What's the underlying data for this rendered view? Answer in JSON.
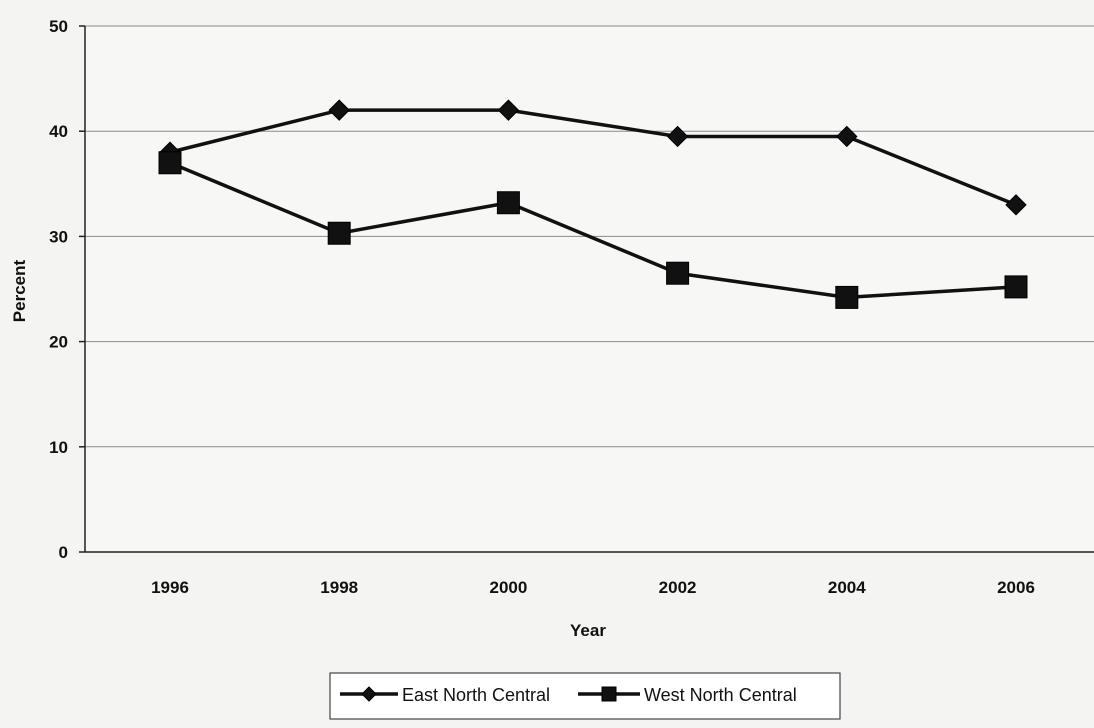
{
  "chart_data": {
    "type": "line",
    "title": "",
    "xlabel": "Year",
    "ylabel": "Percent",
    "categories": [
      "1996",
      "1998",
      "2000",
      "2002",
      "2004",
      "2006"
    ],
    "ylim": [
      0,
      50
    ],
    "yticks": [
      0,
      10,
      20,
      30,
      40,
      50
    ],
    "grid": true,
    "legend_position": "bottom",
    "series": [
      {
        "name": "East North Central",
        "marker": "diamond",
        "color": "#111111",
        "values": [
          38,
          42,
          42,
          39.5,
          39.5,
          33
        ]
      },
      {
        "name": "West North Central",
        "marker": "square",
        "color": "#111111",
        "values": [
          37,
          30.3,
          33.2,
          26.5,
          24.2,
          25.2
        ]
      }
    ]
  }
}
